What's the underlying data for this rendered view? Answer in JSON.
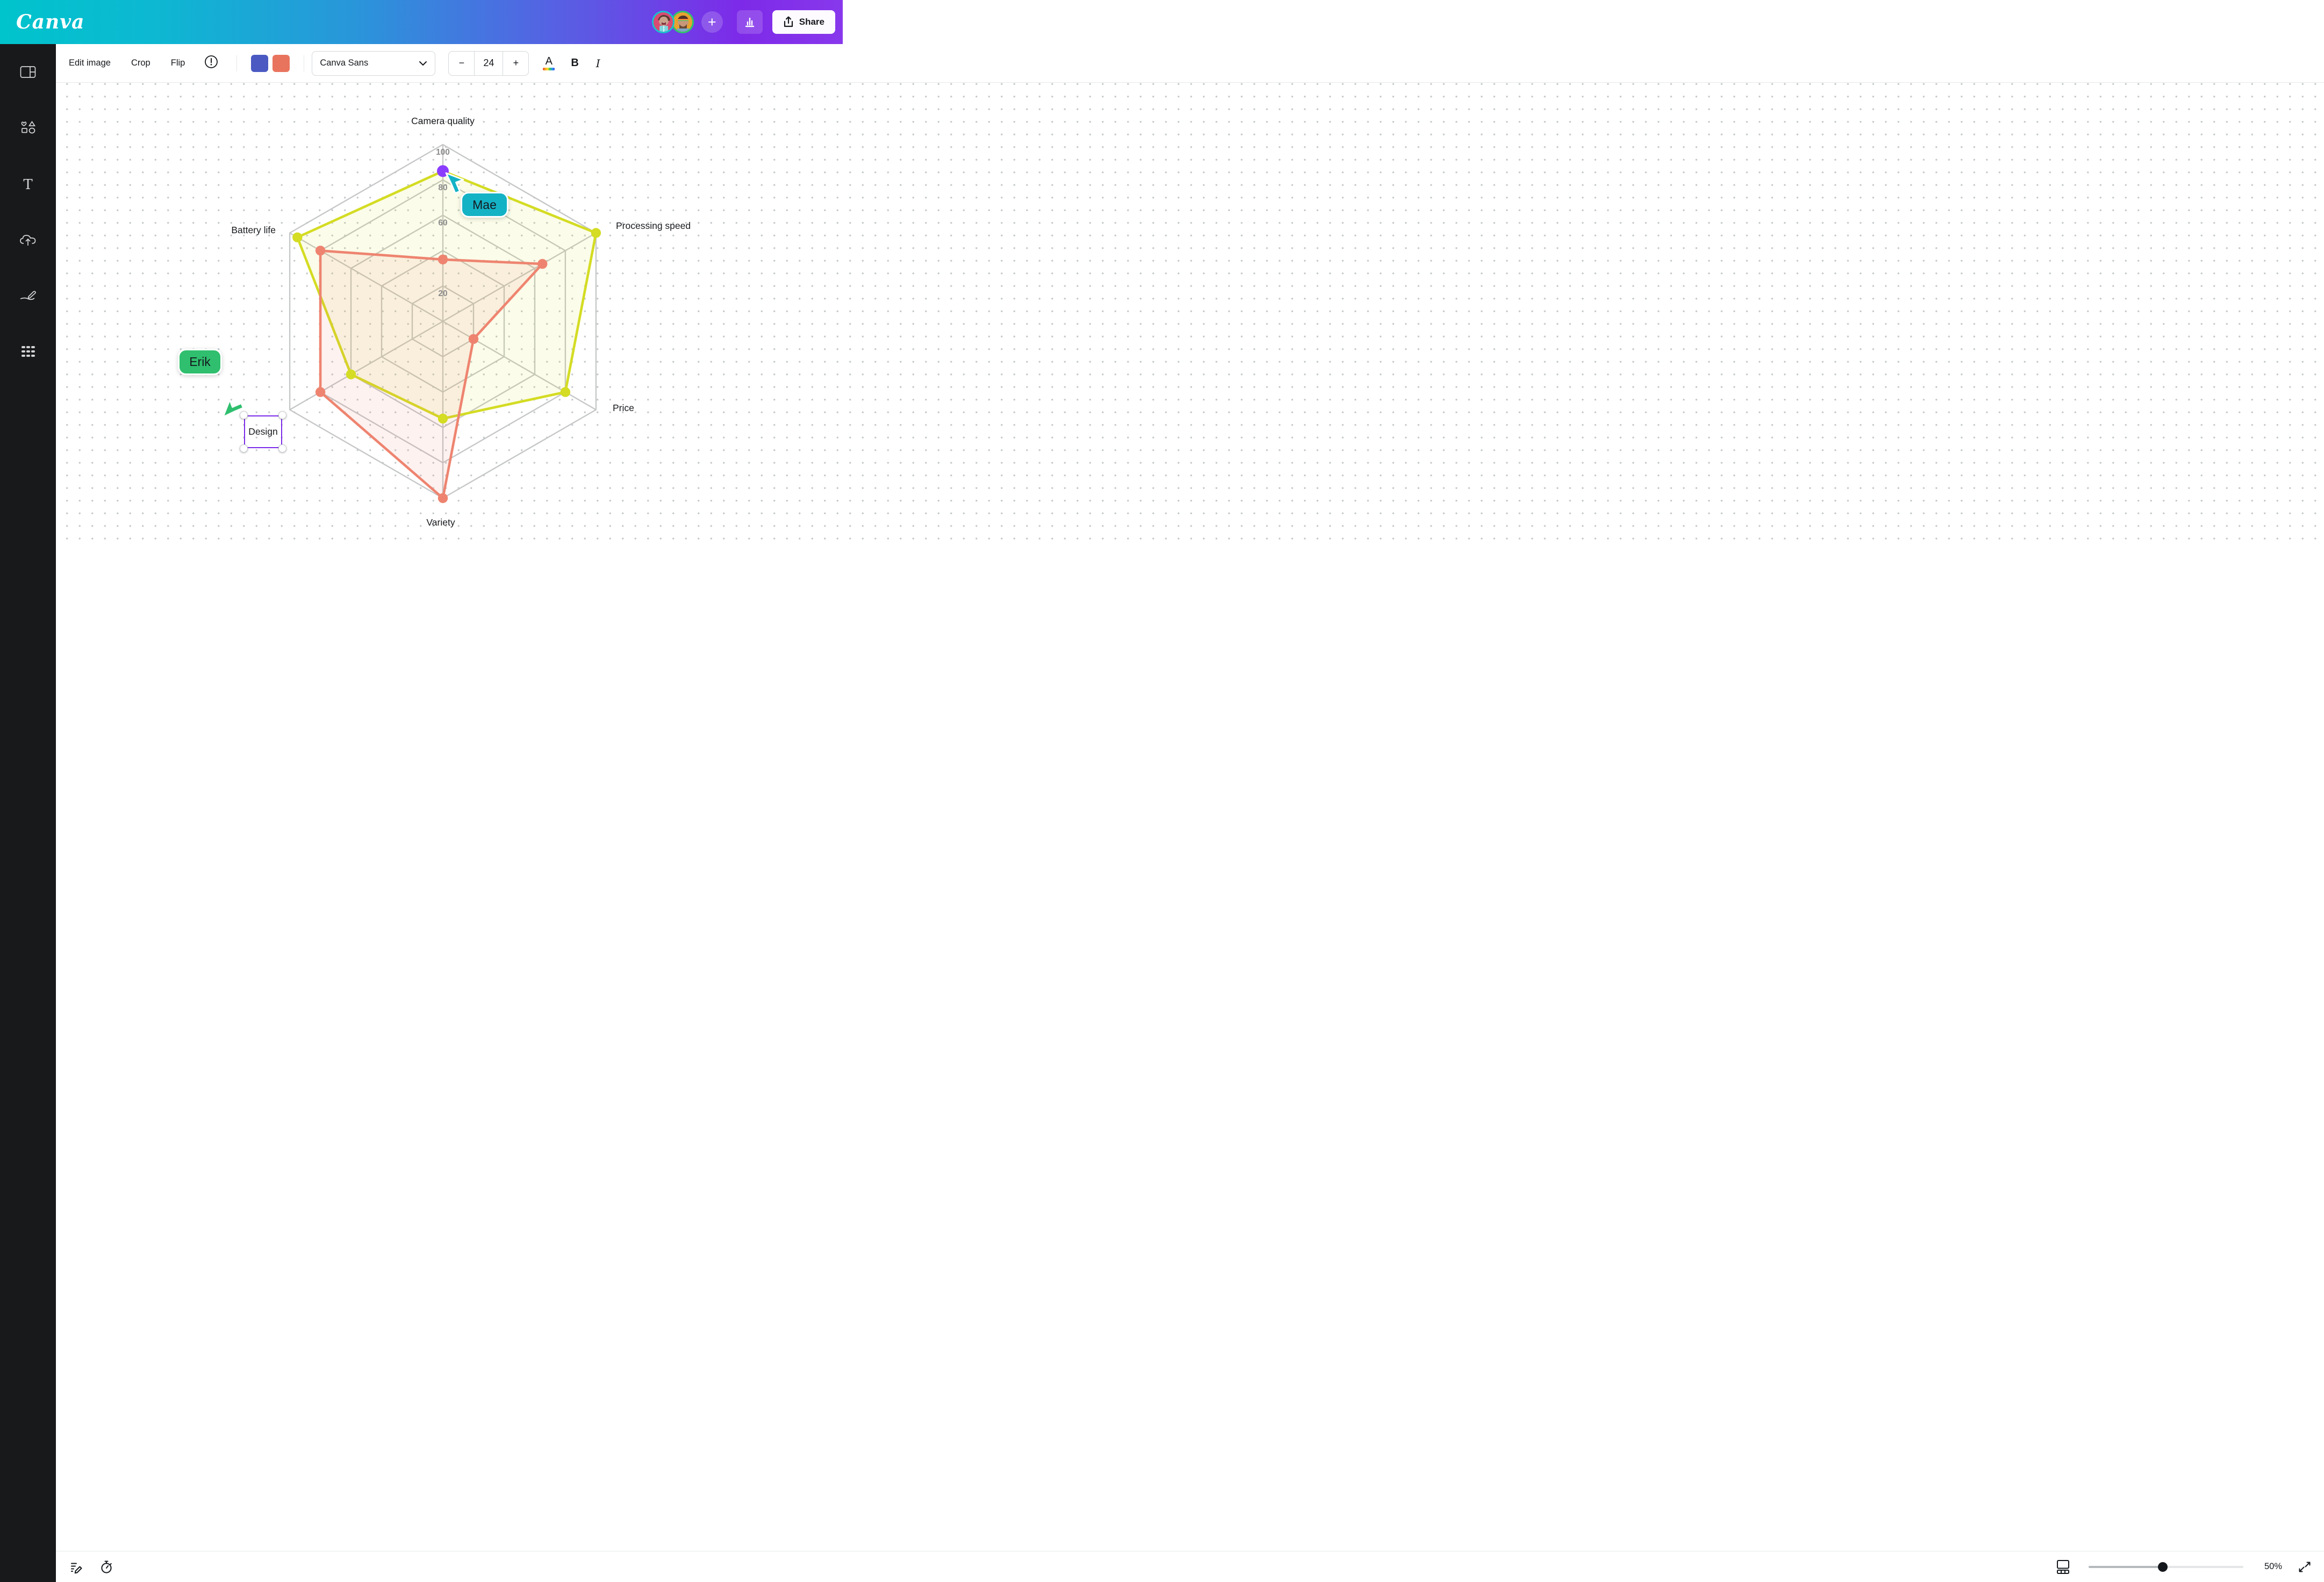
{
  "header": {
    "logo": "Canva",
    "share_label": "Share",
    "avatars": [
      {
        "name": "mae-avatar",
        "ring_color": "#19c2cc"
      },
      {
        "name": "erik-avatar",
        "ring_color": "#2fc46e"
      }
    ]
  },
  "sidebar": {
    "items": [
      "design-panel-icon",
      "elements-icon",
      "text-icon",
      "uploads-icon",
      "draw-icon",
      "apps-icon"
    ]
  },
  "toolbar": {
    "edit_image": "Edit image",
    "crop": "Crop",
    "flip": "Flip",
    "font_name": "Canva Sans",
    "font_size": "24",
    "text_color_label": "A",
    "bold_label": "B",
    "italic_label": "I",
    "swatches": [
      "#4a5ac2",
      "#e9745d"
    ]
  },
  "chart_data": {
    "type": "radar",
    "title": "",
    "categories": [
      "Camera quality",
      "Processing speed",
      "Price",
      "Variety",
      "Design",
      "Battery life"
    ],
    "ticks": [
      100,
      80,
      60,
      40,
      20
    ],
    "range": [
      0,
      100
    ],
    "grid": "hexagonal rings with dotted page background",
    "legend_position": "none",
    "series": [
      {
        "name": "yellow-series",
        "color": "#d4dc23",
        "fill": "rgba(214,222,40,0.10)",
        "values": [
          85,
          100,
          80,
          55,
          60,
          95
        ]
      },
      {
        "name": "salmon-series",
        "color": "#ee8470",
        "fill": "rgba(238,132,112,0.10)",
        "values": [
          35,
          65,
          20,
          100,
          80,
          80
        ]
      }
    ],
    "selected_point": {
      "series": "yellow-series",
      "category": "Camera quality",
      "color": "#8b3dff"
    }
  },
  "collaborators": [
    {
      "name": "Mae",
      "color": "#14b2c5",
      "activity": "dragging Camera quality point"
    },
    {
      "name": "Erik",
      "color": "#2fbf6e",
      "activity": "selected Design label"
    }
  ],
  "bottombar": {
    "zoom": "50%"
  }
}
